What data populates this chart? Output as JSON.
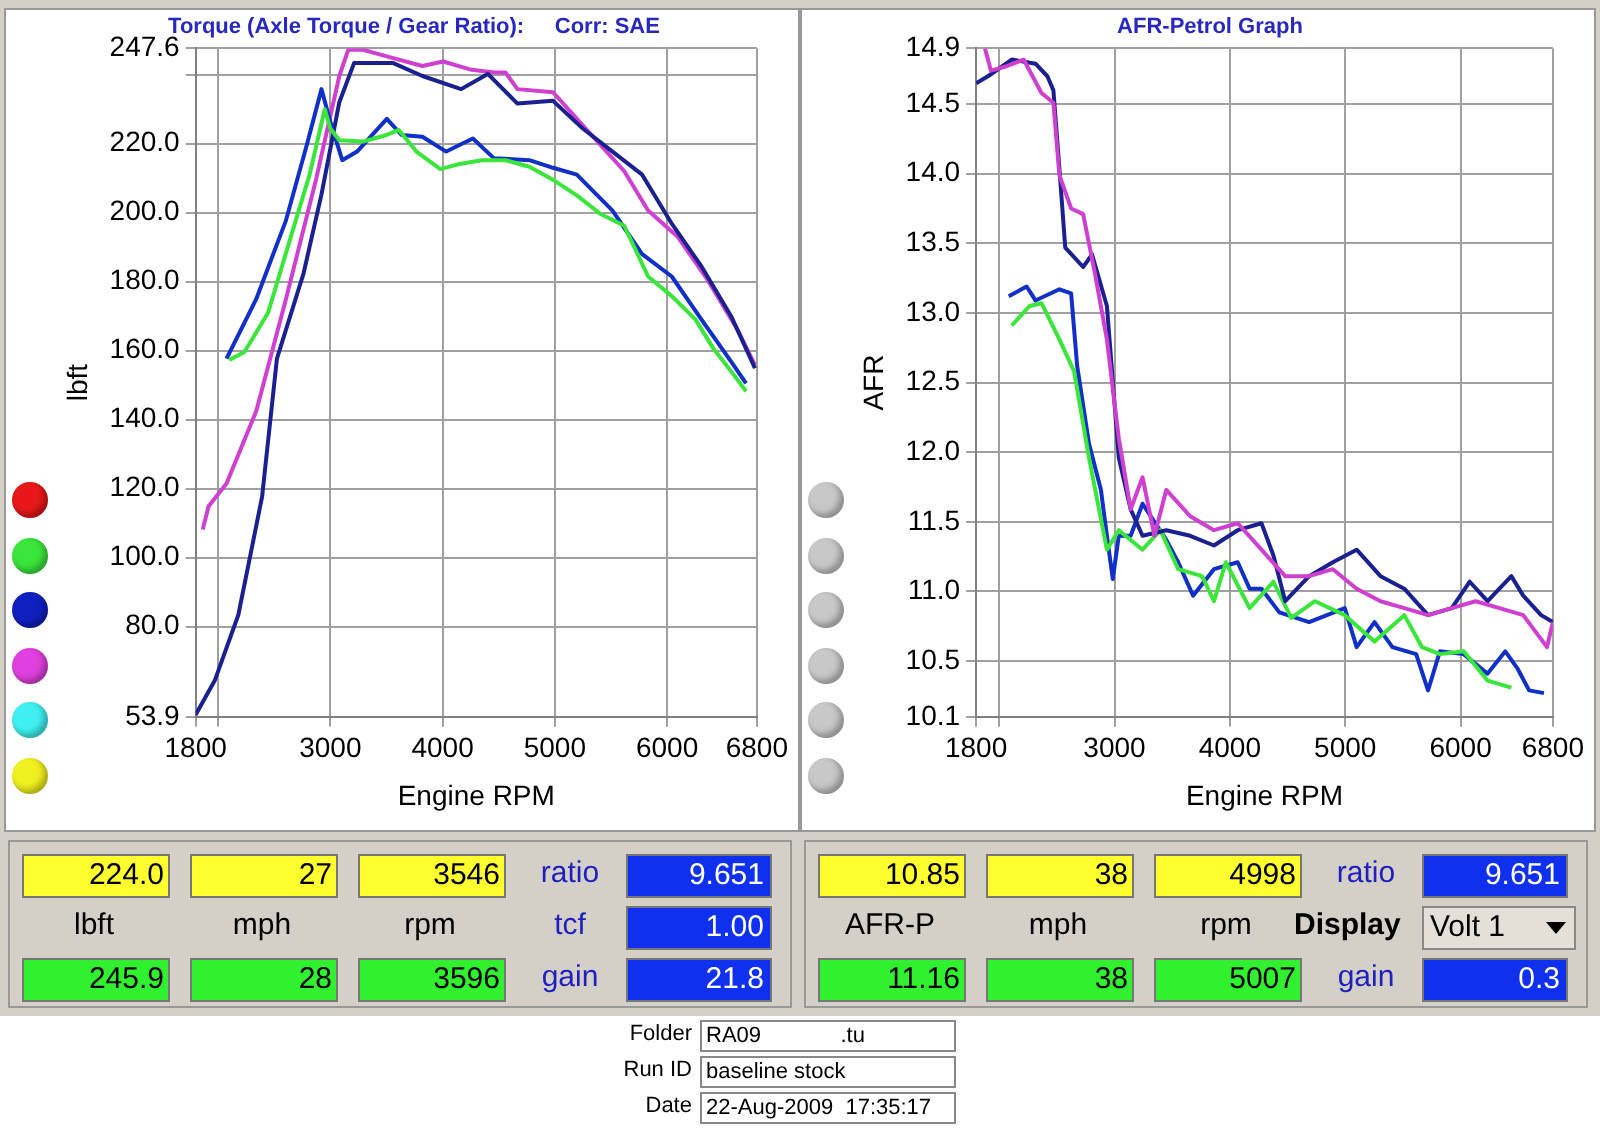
{
  "chart_data": [
    {
      "type": "line",
      "title": "Torque (Axle Torque / Gear Ratio):     Corr: SAE",
      "xlabel": "Engine RPM",
      "ylabel": "lbft",
      "xlim": [
        1800,
        6800
      ],
      "xticks": [
        1800,
        {
          "value": 2000,
          "label": null
        },
        3000,
        4000,
        5000,
        6000,
        6800
      ],
      "ylim": [
        53.9,
        247.6
      ],
      "yticks": [
        53.9,
        {
          "value": 80,
          "label": "80.0"
        },
        {
          "value": 100,
          "label": "100.0"
        },
        {
          "value": 120,
          "label": "120.0"
        },
        {
          "value": 140,
          "label": "140.0"
        },
        {
          "value": 160,
          "label": "160.0"
        },
        {
          "value": 180,
          "label": "180.0"
        },
        {
          "value": 200,
          "label": "200.0"
        },
        {
          "value": 220,
          "label": "220.0"
        },
        {
          "value": 240,
          "label": null
        },
        247.6
      ],
      "grid": true,
      "legend": false,
      "marker": "none",
      "series": [
        {
          "color": "#3ae63a",
          "x": [
            2100,
            2234,
            2445,
            2657,
            2815,
            2950,
            3000,
            3080,
            3290,
            3500,
            3608,
            3767,
            3979,
            4138,
            4350,
            4561,
            4773,
            4984,
            5196,
            5407,
            5619,
            5831,
            6042,
            6254,
            6413,
            6571,
            6704
          ],
          "values": [
            157.3,
            159.6,
            171,
            194,
            211,
            230,
            224.4,
            221,
            220.6,
            222.5,
            224,
            217.7,
            212.6,
            214,
            215.2,
            215.2,
            213.3,
            209.5,
            205,
            199.6,
            196.2,
            181.5,
            175.8,
            169,
            160.6,
            154,
            148.2
          ]
        },
        {
          "color": "#1030c8",
          "x": [
            2075,
            2340,
            2604,
            2790,
            2921,
            3000,
            3106,
            3238,
            3503,
            3635,
            3820,
            4032,
            4270,
            4456,
            4773,
            4984,
            5196,
            5514,
            5778,
            6042,
            6307,
            6571,
            6704
          ],
          "values": [
            157.7,
            175,
            197.7,
            219.6,
            235.8,
            226.3,
            215.2,
            217.7,
            227.2,
            222.5,
            222,
            217.7,
            221.5,
            215.8,
            215.2,
            213,
            211,
            200.6,
            188,
            181.5,
            169,
            156.8,
            150.5
          ]
        },
        {
          "color": "#1a2090",
          "x": [
            1800,
            1970,
            2180,
            2392,
            2524,
            2762,
            2921,
            3080,
            3212,
            3556,
            3820,
            4165,
            4403,
            4667,
            4984,
            5249,
            5514,
            5778,
            6042,
            6307,
            6571,
            6783
          ],
          "values": [
            54.5,
            64.4,
            83.4,
            117.7,
            157.7,
            182.5,
            205.3,
            232,
            243.4,
            243.4,
            239.6,
            235.8,
            240.2,
            231.6,
            232.4,
            224.4,
            217.7,
            211,
            196.8,
            184.4,
            170,
            154.9
          ]
        },
        {
          "color": "#d040d0",
          "x": [
            1863,
            1915,
            2075,
            2340,
            2604,
            2868,
            3080,
            3159,
            3291,
            3503,
            3820,
            4005,
            4244,
            4456,
            4561,
            4667,
            4984,
            5249,
            5619,
            5831,
            6095,
            6360,
            6624,
            6783
          ],
          "values": [
            108.2,
            114.9,
            121.5,
            142.5,
            174.9,
            209,
            239.6,
            247.2,
            247.2,
            245.3,
            242.5,
            243.8,
            241.5,
            240.6,
            240.6,
            235.8,
            234.9,
            225.3,
            212,
            200.6,
            193,
            180.6,
            166.3,
            155.8
          ]
        }
      ]
    },
    {
      "type": "line",
      "title": "AFR-Petrol Graph",
      "xlabel": "Engine RPM",
      "ylabel": "AFR",
      "xlim": [
        1800,
        6800
      ],
      "xticks": [
        1800,
        {
          "value": 2000,
          "label": null
        },
        3000,
        4000,
        5000,
        6000,
        6800
      ],
      "ylim": [
        10.1,
        14.9
      ],
      "yticks": [
        10.1,
        10.5,
        {
          "value": 11,
          "label": "11.0"
        },
        11.5,
        {
          "value": 12,
          "label": "12.0"
        },
        12.5,
        {
          "value": 13,
          "label": "13.0"
        },
        13.5,
        {
          "value": 14,
          "label": "14.0"
        },
        14.5,
        14.9
      ],
      "grid": true,
      "legend": false,
      "marker": "none",
      "series": [
        {
          "color": "#d040d0",
          "x": [
            1877,
            1929,
            2058,
            2212,
            2367,
            2470,
            2522,
            2624,
            2728,
            2831,
            2934,
            3037,
            3140,
            3243,
            3346,
            3449,
            3656,
            3862,
            4068,
            4274,
            4480,
            4687,
            4893,
            5099,
            5306,
            5512,
            5718,
            5924,
            6130,
            6337,
            6543,
            6749,
            6800
          ],
          "values": [
            14.9,
            14.74,
            14.77,
            14.82,
            14.58,
            14.51,
            13.99,
            13.75,
            13.71,
            13.28,
            12.81,
            12.1,
            11.59,
            11.82,
            11.4,
            11.73,
            11.54,
            11.44,
            11.49,
            11.3,
            11.11,
            11.11,
            11.16,
            11.02,
            10.93,
            10.88,
            10.83,
            10.88,
            10.93,
            10.88,
            10.83,
            10.6,
            10.78
          ]
        },
        {
          "color": "#1a2090",
          "x": [
            1800,
            1903,
            2109,
            2315,
            2418,
            2470,
            2522,
            2573,
            2728,
            2805,
            2934,
            3037,
            3140,
            3243,
            3449,
            3656,
            3862,
            4068,
            4274,
            4377,
            4480,
            4687,
            4893,
            5099,
            5306,
            5512,
            5718,
            5924,
            6079,
            6234,
            6440,
            6543,
            6698,
            6800
          ],
          "values": [
            14.65,
            14.7,
            14.82,
            14.79,
            14.7,
            14.6,
            14.04,
            13.47,
            13.33,
            13.42,
            13.05,
            11.96,
            11.59,
            11.4,
            11.44,
            11.4,
            11.33,
            11.44,
            11.49,
            11.26,
            10.93,
            11.11,
            11.21,
            11.3,
            11.11,
            11.02,
            10.83,
            10.88,
            11.07,
            10.93,
            11.11,
            10.97,
            10.83,
            10.78
          ]
        },
        {
          "color": "#3ae63a",
          "x": [
            2109,
            2264,
            2367,
            2522,
            2650,
            2779,
            2934,
            3037,
            3243,
            3398,
            3552,
            3759,
            3862,
            3965,
            4171,
            4377,
            4532,
            4738,
            4996,
            5254,
            5512,
            5666,
            5821,
            6027,
            6233,
            6440
          ],
          "values": [
            12.91,
            13.05,
            13.07,
            12.81,
            12.58,
            11.96,
            11.3,
            11.44,
            11.3,
            11.44,
            11.16,
            11.11,
            10.93,
            11.21,
            10.88,
            11.07,
            10.81,
            10.93,
            10.83,
            10.64,
            10.83,
            10.6,
            10.55,
            10.57,
            10.36,
            10.31
          ]
        },
        {
          "color": "#1030c8",
          "x": [
            2083,
            2238,
            2315,
            2522,
            2624,
            2676,
            2779,
            2882,
            2934,
            2985,
            3037,
            3140,
            3243,
            3449,
            3552,
            3681,
            3862,
            4068,
            4171,
            4274,
            4429,
            4687,
            4996,
            5099,
            5254,
            5409,
            5615,
            5718,
            5821,
            6027,
            6233,
            6388,
            6491,
            6594,
            6723
          ],
          "values": [
            13.12,
            13.19,
            13.09,
            13.17,
            13.14,
            12.62,
            12.06,
            11.73,
            11.4,
            11.09,
            11.4,
            11.4,
            11.63,
            11.37,
            11.21,
            10.97,
            11.16,
            11.21,
            11.02,
            11.02,
            10.85,
            10.78,
            10.88,
            10.6,
            10.78,
            10.6,
            10.55,
            10.29,
            10.57,
            10.55,
            10.41,
            10.57,
            10.45,
            10.29,
            10.27
          ]
        }
      ]
    },
    {
      "type": "other",
      "annotations": [
        "224.0",
        "27",
        "3546",
        "ratio",
        "9.651",
        "lbft",
        "mph",
        "rpm",
        "tcf",
        "1.00",
        "245.9",
        "28",
        "3596",
        "gain",
        "21.8"
      ]
    },
    {
      "type": "other",
      "annotations": [
        "10.85",
        "38",
        "4998",
        "ratio",
        "9.651",
        "AFR-P",
        "mph",
        "rpm",
        "Display",
        "Volt 1",
        "11.16",
        "38",
        "5007",
        "gain",
        "0.3"
      ]
    },
    {
      "type": "other",
      "annotations": [
        "Folder",
        "RA09             .tu",
        "Run ID",
        "baseline stock",
        "Date",
        "22-Aug-2009  17:35:17"
      ]
    }
  ]
}
